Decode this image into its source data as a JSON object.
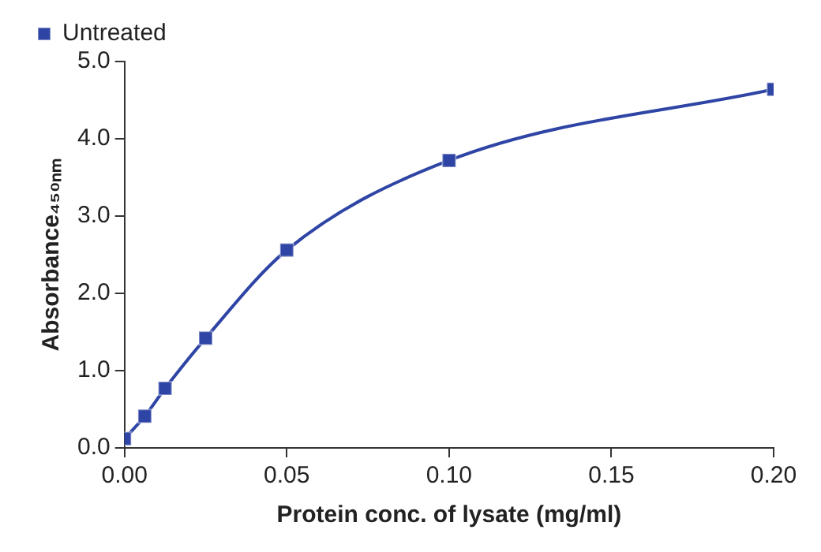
{
  "chart_data": {
    "type": "line",
    "xlabel": "Protein conc. of lysate (mg/ml)",
    "ylabel": "Absorbance₄₅₀ₙₘ",
    "x": [
      0,
      0.00625,
      0.0125,
      0.025,
      0.05,
      0.1,
      0.2
    ],
    "series": [
      {
        "name": "Untreated",
        "color": "#2f45a5",
        "values": [
          0.12,
          0.41,
          0.77,
          1.42,
          2.56,
          3.72,
          4.64
        ]
      }
    ],
    "xlim": [
      0,
      0.2
    ],
    "xticks": [
      {
        "value": 0,
        "label": "0.00"
      },
      {
        "value": 0.05,
        "label": "0.05"
      },
      {
        "value": 0.1,
        "label": "0.10"
      },
      {
        "value": 0.15,
        "label": "0.15"
      },
      {
        "value": 0.2,
        "label": "0.20"
      }
    ],
    "ylim": [
      0,
      5
    ],
    "yticks": [
      {
        "value": 0,
        "label": "0.0"
      },
      {
        "value": 1,
        "label": "1.0"
      },
      {
        "value": 2,
        "label": "2.0"
      },
      {
        "value": 3,
        "label": "3.0"
      },
      {
        "value": 4,
        "label": "4.0"
      },
      {
        "value": 5,
        "label": "5.0"
      }
    ],
    "grid": false,
    "legend": "top left",
    "marker": "square",
    "line_style": "solid"
  }
}
